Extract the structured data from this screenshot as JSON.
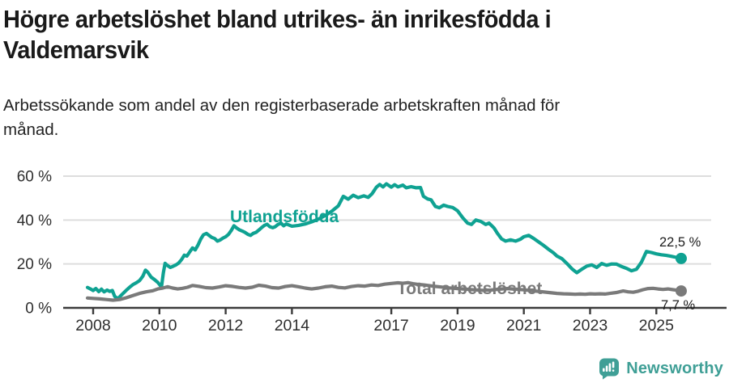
{
  "header": {
    "title": "Högre arbetslöshet bland utrikes- än inrikesfödda i Valdemarsvik",
    "subtitle": "Arbetssökande som andel av den registerbaserade arbetskraften månad för månad."
  },
  "colors": {
    "foreign_series": "#0FA292",
    "total_series": "#7A7A7A",
    "grid": "#DDDDDD",
    "axis": "#3B3B3B",
    "tick_text": "#2E2E2E",
    "end_label_text": "#1C1C1C",
    "brand": "#3F9F96"
  },
  "chart_data": {
    "type": "line",
    "unit": "%",
    "grid": "horizontal",
    "x_ticks": [
      2008,
      2010,
      2012,
      2014,
      2017,
      2019,
      2021,
      2023,
      2025
    ],
    "y_ticks": [
      0,
      20,
      40,
      60
    ],
    "y_tick_suffix": " %",
    "xlim": [
      2007.8,
      2026.2
    ],
    "ylim": [
      0,
      60
    ],
    "legend_position": "inline-labels",
    "series": [
      {
        "name": "Utlandsfödda",
        "end_label": "22,5 %",
        "end_value": 22.5,
        "points": [
          [
            2007.83,
            9.3
          ],
          [
            2007.92,
            8.6
          ],
          [
            2008.0,
            7.9
          ],
          [
            2008.08,
            8.8
          ],
          [
            2008.17,
            7.4
          ],
          [
            2008.25,
            8.5
          ],
          [
            2008.33,
            7.3
          ],
          [
            2008.42,
            8.1
          ],
          [
            2008.5,
            7.5
          ],
          [
            2008.58,
            7.9
          ],
          [
            2008.65,
            5.2
          ],
          [
            2008.75,
            4.2
          ],
          [
            2008.85,
            5.8
          ],
          [
            2009.0,
            8.0
          ],
          [
            2009.1,
            9.4
          ],
          [
            2009.2,
            10.6
          ],
          [
            2009.3,
            11.4
          ],
          [
            2009.4,
            12.4
          ],
          [
            2009.5,
            14.4
          ],
          [
            2009.58,
            17.2
          ],
          [
            2009.65,
            16.2
          ],
          [
            2009.75,
            14.0
          ],
          [
            2009.85,
            12.9
          ],
          [
            2009.95,
            11.6
          ],
          [
            2010.02,
            10.3
          ],
          [
            2010.06,
            9.4
          ],
          [
            2010.12,
            16.0
          ],
          [
            2010.17,
            20.3
          ],
          [
            2010.25,
            19.2
          ],
          [
            2010.33,
            18.4
          ],
          [
            2010.42,
            19.0
          ],
          [
            2010.5,
            19.6
          ],
          [
            2010.58,
            20.4
          ],
          [
            2010.67,
            22.0
          ],
          [
            2010.75,
            24.0
          ],
          [
            2010.83,
            23.6
          ],
          [
            2010.92,
            25.6
          ],
          [
            2011.0,
            27.3
          ],
          [
            2011.08,
            26.4
          ],
          [
            2011.17,
            28.8
          ],
          [
            2011.25,
            31.4
          ],
          [
            2011.33,
            33.3
          ],
          [
            2011.42,
            33.9
          ],
          [
            2011.5,
            33.0
          ],
          [
            2011.58,
            32.1
          ],
          [
            2011.67,
            31.6
          ],
          [
            2011.75,
            30.4
          ],
          [
            2011.83,
            30.9
          ],
          [
            2011.92,
            31.8
          ],
          [
            2012.0,
            32.4
          ],
          [
            2012.08,
            33.4
          ],
          [
            2012.17,
            35.3
          ],
          [
            2012.25,
            37.4
          ],
          [
            2012.33,
            36.4
          ],
          [
            2012.42,
            35.5
          ],
          [
            2012.5,
            35.0
          ],
          [
            2012.58,
            34.4
          ],
          [
            2012.67,
            33.5
          ],
          [
            2012.75,
            33.0
          ],
          [
            2012.83,
            33.9
          ],
          [
            2012.92,
            34.4
          ],
          [
            2013.0,
            35.4
          ],
          [
            2013.08,
            36.5
          ],
          [
            2013.17,
            37.6
          ],
          [
            2013.25,
            38.1
          ],
          [
            2013.33,
            37.0
          ],
          [
            2013.42,
            36.5
          ],
          [
            2013.5,
            37.0
          ],
          [
            2013.58,
            38.0
          ],
          [
            2013.67,
            38.6
          ],
          [
            2013.75,
            37.4
          ],
          [
            2013.83,
            38.2
          ],
          [
            2014.0,
            37.2
          ],
          [
            2014.2,
            37.6
          ],
          [
            2014.4,
            38.2
          ],
          [
            2014.6,
            39.2
          ],
          [
            2014.8,
            40.4
          ],
          [
            2015.0,
            42.0
          ],
          [
            2015.2,
            44.0
          ],
          [
            2015.4,
            46.5
          ],
          [
            2015.55,
            50.8
          ],
          [
            2015.7,
            49.5
          ],
          [
            2015.85,
            51.3
          ],
          [
            2016.0,
            50.2
          ],
          [
            2016.17,
            51.0
          ],
          [
            2016.3,
            50.3
          ],
          [
            2016.42,
            52.0
          ],
          [
            2016.55,
            55.0
          ],
          [
            2016.65,
            56.2
          ],
          [
            2016.75,
            55.1
          ],
          [
            2016.85,
            56.5
          ],
          [
            2017.0,
            55.0
          ],
          [
            2017.1,
            56.1
          ],
          [
            2017.2,
            55.1
          ],
          [
            2017.35,
            55.9
          ],
          [
            2017.45,
            54.7
          ],
          [
            2017.6,
            55.2
          ],
          [
            2017.75,
            54.7
          ],
          [
            2017.88,
            54.8
          ],
          [
            2017.97,
            50.8
          ],
          [
            2018.1,
            49.6
          ],
          [
            2018.2,
            49.2
          ],
          [
            2018.33,
            46.2
          ],
          [
            2018.45,
            45.6
          ],
          [
            2018.58,
            46.8
          ],
          [
            2018.7,
            46.2
          ],
          [
            2018.85,
            45.7
          ],
          [
            2019.0,
            44.2
          ],
          [
            2019.15,
            41.2
          ],
          [
            2019.3,
            38.6
          ],
          [
            2019.42,
            38.0
          ],
          [
            2019.55,
            40.0
          ],
          [
            2019.7,
            39.4
          ],
          [
            2019.85,
            38.0
          ],
          [
            2019.95,
            38.6
          ],
          [
            2020.1,
            36.4
          ],
          [
            2020.2,
            34.0
          ],
          [
            2020.33,
            31.4
          ],
          [
            2020.45,
            30.4
          ],
          [
            2020.6,
            31.0
          ],
          [
            2020.75,
            30.4
          ],
          [
            2020.9,
            31.3
          ],
          [
            2021.0,
            32.4
          ],
          [
            2021.15,
            33.0
          ],
          [
            2021.3,
            31.6
          ],
          [
            2021.45,
            30.0
          ],
          [
            2021.6,
            28.4
          ],
          [
            2021.75,
            26.6
          ],
          [
            2021.9,
            25.0
          ],
          [
            2022.0,
            23.6
          ],
          [
            2022.15,
            22.4
          ],
          [
            2022.3,
            20.2
          ],
          [
            2022.45,
            17.8
          ],
          [
            2022.6,
            16.0
          ],
          [
            2022.75,
            17.6
          ],
          [
            2022.9,
            19.0
          ],
          [
            2023.05,
            19.6
          ],
          [
            2023.2,
            18.4
          ],
          [
            2023.35,
            20.2
          ],
          [
            2023.5,
            19.4
          ],
          [
            2023.65,
            20.0
          ],
          [
            2023.8,
            19.9
          ],
          [
            2023.95,
            18.8
          ],
          [
            2024.1,
            18.0
          ],
          [
            2024.25,
            16.9
          ],
          [
            2024.4,
            17.6
          ],
          [
            2024.55,
            20.8
          ],
          [
            2024.7,
            25.7
          ],
          [
            2024.85,
            25.2
          ],
          [
            2025.0,
            24.6
          ],
          [
            2025.15,
            24.2
          ],
          [
            2025.3,
            23.9
          ],
          [
            2025.45,
            23.5
          ],
          [
            2025.6,
            23.0
          ],
          [
            2025.75,
            22.5
          ]
        ]
      },
      {
        "name": "Total arbetslöshet",
        "end_label": "7,7 %",
        "end_value": 7.7,
        "points": [
          [
            2007.83,
            4.5
          ],
          [
            2008.0,
            4.3
          ],
          [
            2008.2,
            4.1
          ],
          [
            2008.4,
            3.8
          ],
          [
            2008.6,
            3.5
          ],
          [
            2008.8,
            3.8
          ],
          [
            2009.0,
            4.6
          ],
          [
            2009.2,
            5.6
          ],
          [
            2009.4,
            6.6
          ],
          [
            2009.6,
            7.3
          ],
          [
            2009.8,
            7.8
          ],
          [
            2009.95,
            8.6
          ],
          [
            2010.1,
            9.0
          ],
          [
            2010.25,
            9.6
          ],
          [
            2010.4,
            9.0
          ],
          [
            2010.55,
            8.6
          ],
          [
            2010.7,
            8.9
          ],
          [
            2010.85,
            9.4
          ],
          [
            2011.0,
            10.2
          ],
          [
            2011.2,
            9.8
          ],
          [
            2011.4,
            9.2
          ],
          [
            2011.6,
            9.0
          ],
          [
            2011.8,
            9.5
          ],
          [
            2012.0,
            10.1
          ],
          [
            2012.2,
            9.8
          ],
          [
            2012.4,
            9.3
          ],
          [
            2012.6,
            9.0
          ],
          [
            2012.8,
            9.4
          ],
          [
            2013.0,
            10.3
          ],
          [
            2013.2,
            9.9
          ],
          [
            2013.4,
            9.2
          ],
          [
            2013.6,
            9.0
          ],
          [
            2013.8,
            9.7
          ],
          [
            2014.0,
            10.1
          ],
          [
            2014.2,
            9.6
          ],
          [
            2014.4,
            9.0
          ],
          [
            2014.6,
            8.6
          ],
          [
            2014.8,
            9.0
          ],
          [
            2015.0,
            9.6
          ],
          [
            2015.2,
            9.9
          ],
          [
            2015.4,
            9.3
          ],
          [
            2015.6,
            9.1
          ],
          [
            2015.8,
            9.7
          ],
          [
            2016.0,
            10.1
          ],
          [
            2016.2,
            9.9
          ],
          [
            2016.4,
            10.4
          ],
          [
            2016.6,
            10.2
          ],
          [
            2016.8,
            10.8
          ],
          [
            2017.0,
            11.1
          ],
          [
            2017.2,
            11.4
          ],
          [
            2017.35,
            11.2
          ],
          [
            2017.5,
            11.5
          ],
          [
            2017.65,
            11.0
          ],
          [
            2017.8,
            10.7
          ],
          [
            2018.0,
            10.4
          ],
          [
            2018.25,
            9.9
          ],
          [
            2018.5,
            9.5
          ],
          [
            2018.75,
            9.1
          ],
          [
            2019.0,
            8.8
          ],
          [
            2019.25,
            8.5
          ],
          [
            2019.5,
            8.2
          ],
          [
            2019.75,
            8.0
          ],
          [
            2020.0,
            8.1
          ],
          [
            2020.25,
            8.5
          ],
          [
            2020.5,
            8.8
          ],
          [
            2020.75,
            8.5
          ],
          [
            2021.0,
            8.2
          ],
          [
            2021.25,
            7.8
          ],
          [
            2021.5,
            7.4
          ],
          [
            2021.75,
            7.0
          ],
          [
            2022.0,
            6.6
          ],
          [
            2022.2,
            6.4
          ],
          [
            2022.4,
            6.3
          ],
          [
            2022.55,
            6.2
          ],
          [
            2022.7,
            6.3
          ],
          [
            2022.85,
            6.2
          ],
          [
            2023.0,
            6.4
          ],
          [
            2023.15,
            6.3
          ],
          [
            2023.3,
            6.4
          ],
          [
            2023.45,
            6.3
          ],
          [
            2023.6,
            6.6
          ],
          [
            2023.8,
            7.0
          ],
          [
            2024.0,
            7.7
          ],
          [
            2024.15,
            7.3
          ],
          [
            2024.3,
            7.1
          ],
          [
            2024.45,
            7.6
          ],
          [
            2024.6,
            8.3
          ],
          [
            2024.75,
            8.8
          ],
          [
            2024.9,
            8.9
          ],
          [
            2025.05,
            8.6
          ],
          [
            2025.2,
            8.4
          ],
          [
            2025.35,
            8.6
          ],
          [
            2025.5,
            8.3
          ],
          [
            2025.65,
            8.0
          ],
          [
            2025.75,
            7.7
          ]
        ]
      }
    ]
  },
  "footer": {
    "brand_name": "Newsworthy"
  }
}
